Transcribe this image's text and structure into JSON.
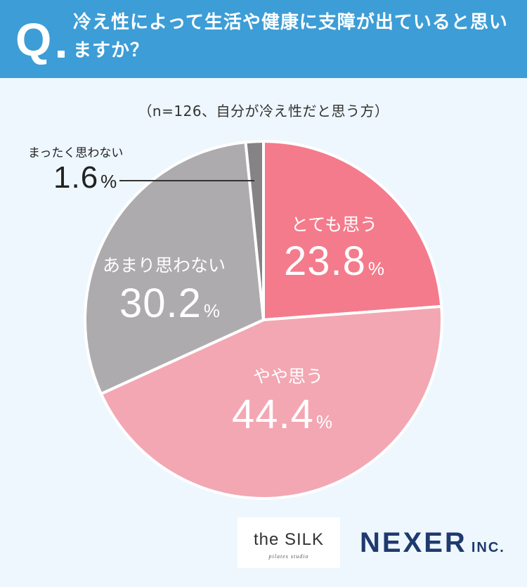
{
  "header": {
    "q_mark": "Q",
    "question": "冷え性によって生活や健康に支障が出ていると思いますか？"
  },
  "sample_note": "（n=126、自分が冷え性だと思う方）",
  "chart_data": {
    "type": "pie",
    "start": "top, clockwise",
    "slices": [
      {
        "label": "とても思う",
        "value": 23.8,
        "value_text": "23.8",
        "color": "#f47b8c"
      },
      {
        "label": "やや思う",
        "value": 44.4,
        "value_text": "44.4",
        "color": "#f3a7b3"
      },
      {
        "label": "あまり思わない",
        "value": 30.2,
        "value_text": "30.2",
        "color": "#adabad"
      },
      {
        "label": "まったく思わない",
        "value": 1.6,
        "value_text": "1.6",
        "color": "#858385"
      }
    ],
    "unit": "%"
  },
  "logos": {
    "silk_main": "the SILK",
    "silk_sub": "pilates studio",
    "nexer_main": "NEXER",
    "nexer_sub": "INC."
  }
}
